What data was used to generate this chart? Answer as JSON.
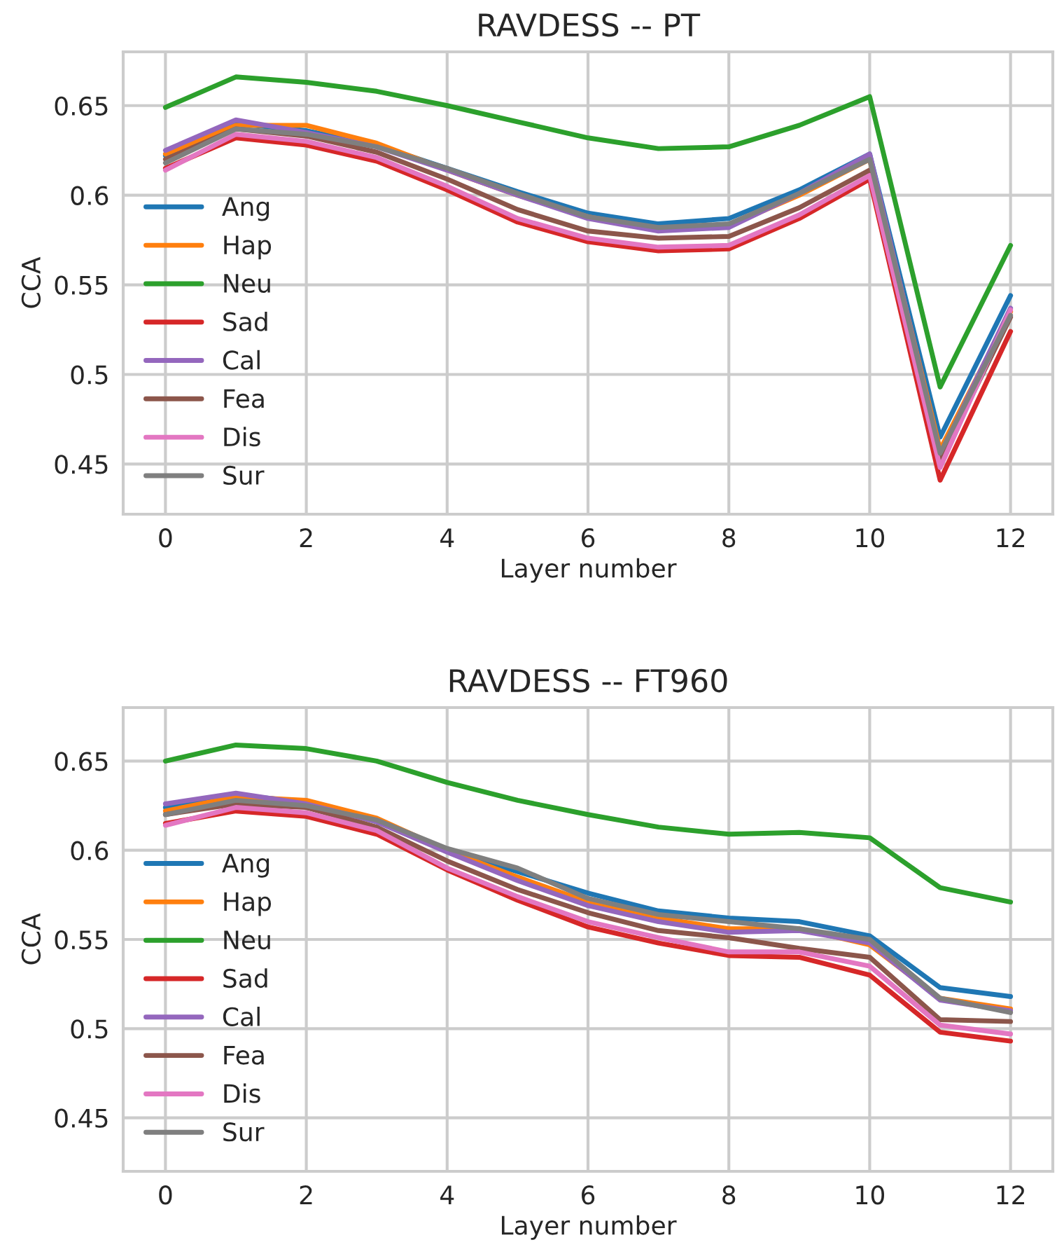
{
  "chart_data": [
    {
      "type": "line",
      "title": "RAVDESS -- PT",
      "xlabel": "Layer number",
      "ylabel": "CCA",
      "x": [
        0,
        1,
        2,
        3,
        4,
        5,
        6,
        7,
        8,
        9,
        10,
        11,
        12
      ],
      "xlim": [
        -0.6,
        12.6
      ],
      "xticks": [
        0,
        2,
        4,
        6,
        8,
        10,
        12
      ],
      "ylim": [
        0.422,
        0.68
      ],
      "yticks": [
        0.45,
        0.5,
        0.55,
        0.6,
        0.65
      ],
      "grid": true,
      "legend": "left",
      "line_style": "solid",
      "marker": "none",
      "series": [
        {
          "name": "Ang",
          "color": "#1f77b4",
          "values": [
            0.622,
            0.64,
            0.636,
            0.628,
            0.615,
            0.602,
            0.59,
            0.584,
            0.587,
            0.603,
            0.623,
            0.465,
            0.544
          ]
        },
        {
          "name": "Hap",
          "color": "#ff7f0e",
          "values": [
            0.623,
            0.639,
            0.639,
            0.629,
            0.614,
            0.6,
            0.588,
            0.581,
            0.583,
            0.6,
            0.62,
            0.458,
            0.535
          ]
        },
        {
          "name": "Neu",
          "color": "#2ca02c",
          "values": [
            0.649,
            0.666,
            0.663,
            0.658,
            0.65,
            0.641,
            0.632,
            0.626,
            0.627,
            0.639,
            0.655,
            0.493,
            0.572
          ]
        },
        {
          "name": "Sad",
          "color": "#d62728",
          "values": [
            0.615,
            0.632,
            0.628,
            0.619,
            0.603,
            0.585,
            0.574,
            0.569,
            0.57,
            0.587,
            0.609,
            0.441,
            0.524
          ]
        },
        {
          "name": "Cal",
          "color": "#9467bd",
          "values": [
            0.625,
            0.642,
            0.635,
            0.627,
            0.614,
            0.6,
            0.587,
            0.58,
            0.582,
            0.601,
            0.623,
            0.455,
            0.537
          ]
        },
        {
          "name": "Fea",
          "color": "#8c564b",
          "values": [
            0.62,
            0.637,
            0.633,
            0.624,
            0.609,
            0.592,
            0.58,
            0.576,
            0.577,
            0.593,
            0.614,
            0.452,
            0.532
          ]
        },
        {
          "name": "Dis",
          "color": "#e377c2",
          "values": [
            0.614,
            0.634,
            0.63,
            0.621,
            0.605,
            0.587,
            0.576,
            0.571,
            0.572,
            0.589,
            0.611,
            0.448,
            0.536
          ]
        },
        {
          "name": "Sur",
          "color": "#7f7f7f",
          "values": [
            0.618,
            0.637,
            0.634,
            0.627,
            0.615,
            0.601,
            0.588,
            0.582,
            0.584,
            0.601,
            0.62,
            0.456,
            0.533
          ]
        }
      ]
    },
    {
      "type": "line",
      "title": "RAVDESS -- FT960",
      "xlabel": "Layer number",
      "ylabel": "CCA",
      "x": [
        0,
        1,
        2,
        3,
        4,
        5,
        6,
        7,
        8,
        9,
        10,
        11,
        12
      ],
      "xlim": [
        -0.6,
        12.6
      ],
      "xticks": [
        0,
        2,
        4,
        6,
        8,
        10,
        12
      ],
      "ylim": [
        0.42,
        0.68
      ],
      "yticks": [
        0.45,
        0.5,
        0.55,
        0.6,
        0.65
      ],
      "grid": true,
      "legend": "left",
      "line_style": "solid",
      "marker": "none",
      "series": [
        {
          "name": "Ang",
          "color": "#1f77b4",
          "values": [
            0.624,
            0.631,
            0.627,
            0.616,
            0.6,
            0.588,
            0.576,
            0.566,
            0.562,
            0.56,
            0.552,
            0.523,
            0.518
          ]
        },
        {
          "name": "Hap",
          "color": "#ff7f0e",
          "values": [
            0.622,
            0.63,
            0.628,
            0.618,
            0.6,
            0.585,
            0.571,
            0.562,
            0.556,
            0.556,
            0.547,
            0.517,
            0.511
          ]
        },
        {
          "name": "Neu",
          "color": "#2ca02c",
          "values": [
            0.65,
            0.659,
            0.657,
            0.65,
            0.638,
            0.628,
            0.62,
            0.613,
            0.609,
            0.61,
            0.607,
            0.579,
            0.571
          ]
        },
        {
          "name": "Sad",
          "color": "#d62728",
          "values": [
            0.615,
            0.622,
            0.619,
            0.609,
            0.589,
            0.572,
            0.557,
            0.548,
            0.541,
            0.54,
            0.53,
            0.498,
            0.493
          ]
        },
        {
          "name": "Cal",
          "color": "#9467bd",
          "values": [
            0.626,
            0.632,
            0.626,
            0.616,
            0.599,
            0.583,
            0.569,
            0.56,
            0.554,
            0.555,
            0.548,
            0.516,
            0.51
          ]
        },
        {
          "name": "Fea",
          "color": "#8c564b",
          "values": [
            0.62,
            0.626,
            0.624,
            0.613,
            0.594,
            0.578,
            0.565,
            0.555,
            0.551,
            0.545,
            0.54,
            0.505,
            0.504
          ]
        },
        {
          "name": "Dis",
          "color": "#e377c2",
          "values": [
            0.614,
            0.624,
            0.621,
            0.611,
            0.59,
            0.574,
            0.56,
            0.551,
            0.543,
            0.543,
            0.535,
            0.502,
            0.497
          ]
        },
        {
          "name": "Sur",
          "color": "#7f7f7f",
          "values": [
            0.62,
            0.628,
            0.625,
            0.617,
            0.601,
            0.59,
            0.573,
            0.564,
            0.56,
            0.556,
            0.55,
            0.517,
            0.509
          ]
        }
      ]
    }
  ]
}
